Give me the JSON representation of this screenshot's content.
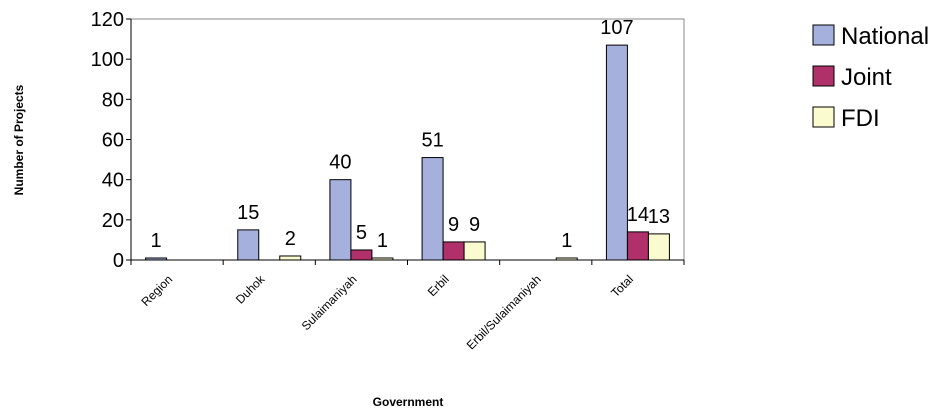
{
  "chart_data": {
    "type": "bar",
    "xlabel": "Government",
    "ylabel": "Number of Projects",
    "ylim": [
      0,
      120
    ],
    "yticks": [
      0,
      20,
      40,
      60,
      80,
      100,
      120
    ],
    "grid": false,
    "legend_position": "top-right",
    "categories": [
      "Region",
      "Duhok",
      "Sulaimaniyah",
      "Erbil",
      "Erbil/Sulaimaniyah",
      "Total"
    ],
    "series": [
      {
        "name": "National",
        "color": "#a6b0dc",
        "values": [
          1,
          15,
          40,
          51,
          null,
          107
        ]
      },
      {
        "name": "Joint",
        "color": "#b0306a",
        "values": [
          null,
          null,
          5,
          9,
          null,
          14
        ]
      },
      {
        "name": "FDI",
        "color": "#fbfbd0",
        "values": [
          null,
          2,
          1,
          9,
          1,
          13
        ]
      }
    ],
    "data_labels": [
      {
        "category": "Region",
        "series": "National",
        "text": "1"
      },
      {
        "category": "Duhok",
        "series": "National",
        "text": "15"
      },
      {
        "category": "Duhok",
        "series": "FDI",
        "text": "2"
      },
      {
        "category": "Sulaimaniyah",
        "series": "National",
        "text": "40"
      },
      {
        "category": "Sulaimaniyah",
        "series": "Joint",
        "text": "5"
      },
      {
        "category": "Sulaimaniyah",
        "series": "FDI",
        "text": "1"
      },
      {
        "category": "Erbil",
        "series": "National",
        "text": "51"
      },
      {
        "category": "Erbil",
        "series": "Joint",
        "text": "9"
      },
      {
        "category": "Erbil",
        "series": "FDI",
        "text": "9"
      },
      {
        "category": "Erbil/Sulaimaniyah",
        "series": "FDI",
        "text": "1"
      },
      {
        "category": "Total",
        "series": "National",
        "text": "107"
      },
      {
        "category": "Total",
        "series": "Joint",
        "text": "14"
      },
      {
        "category": "Total",
        "series": "FDI",
        "text": "13"
      }
    ]
  }
}
